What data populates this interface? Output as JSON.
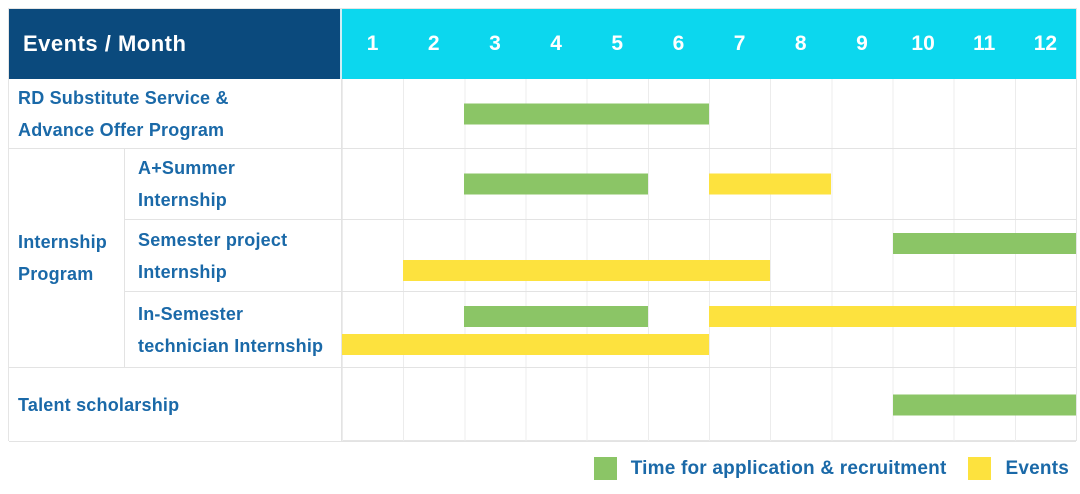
{
  "header": {
    "corner_label": "Events / Month"
  },
  "labels": {
    "rd": [
      "RD Substitute Service &",
      "Advance Offer Program"
    ],
    "internship_group": [
      "Internship",
      "Program"
    ],
    "a_summer": [
      "A+Summer",
      "Internship"
    ],
    "semester_project": [
      "Semester project",
      "Internship"
    ],
    "in_semester": [
      "In-Semester",
      "technician Internship"
    ],
    "talent": [
      "Talent scholarship"
    ]
  },
  "legend": {
    "recruitment_label": "Time for application & recruitment",
    "events_label": "Events"
  },
  "colors": {
    "header_navy": "#0B4A7D",
    "month_cyan": "#0CD7EE",
    "label_blue": "#1A69A8",
    "green": "#8BC566",
    "yellow": "#FDE23E",
    "grid_line": "#ECECEC",
    "cell_border": "#E3E3E3"
  },
  "chart_data": {
    "type": "gantt",
    "title": "Events / Month",
    "x_axis": {
      "unit": "month",
      "ticks": [
        "1",
        "2",
        "3",
        "4",
        "5",
        "6",
        "7",
        "8",
        "9",
        "10",
        "11",
        "12"
      ],
      "range": [
        1,
        12
      ]
    },
    "grid": true,
    "legend_position": "bottom-right",
    "series": [
      {
        "key": "recruitment",
        "label": "Time for application & recruitment",
        "color": "#8BC566"
      },
      {
        "key": "events",
        "label": "Events",
        "color": "#FDE23E"
      }
    ],
    "rows": [
      {
        "group": "",
        "label": "RD Substitute Service & Advance Offer Program",
        "bars": [
          {
            "series": "recruitment",
            "start_month": 3,
            "end_month": 6,
            "lane": "mid"
          }
        ]
      },
      {
        "group": "Internship Program",
        "label": "A+Summer Internship",
        "bars": [
          {
            "series": "recruitment",
            "start_month": 3,
            "end_month": 5,
            "lane": "mid"
          },
          {
            "series": "events",
            "start_month": 7,
            "end_month": 8,
            "lane": "mid"
          }
        ]
      },
      {
        "group": "Internship Program",
        "label": "Semester project Internship",
        "bars": [
          {
            "series": "recruitment",
            "start_month": 10,
            "end_month": 12,
            "lane": "top"
          },
          {
            "series": "events",
            "start_month": 2,
            "end_month": 7,
            "lane": "bottom"
          }
        ]
      },
      {
        "group": "Internship Program",
        "label": "In-Semester technician Internship",
        "bars": [
          {
            "series": "recruitment",
            "start_month": 3,
            "end_month": 5,
            "lane": "top"
          },
          {
            "series": "events",
            "start_month": 7,
            "end_month": 12,
            "lane": "top"
          },
          {
            "series": "events",
            "start_month": 1,
            "end_month": 6,
            "lane": "bottom"
          }
        ]
      },
      {
        "group": "",
        "label": "Talent scholarship",
        "bars": [
          {
            "series": "recruitment",
            "start_month": 10,
            "end_month": 12,
            "lane": "mid"
          }
        ]
      }
    ]
  }
}
